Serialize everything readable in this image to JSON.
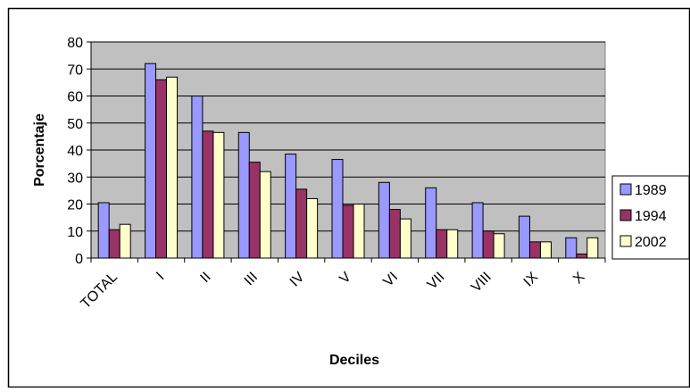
{
  "chart_data": {
    "type": "bar",
    "xlabel": "Deciles",
    "ylabel": "Porcentaje",
    "categories": [
      "TOTAL",
      "I",
      "II",
      "III",
      "IV",
      "V",
      "VI",
      "VII",
      "VIII",
      "IX",
      "X"
    ],
    "yticks": [
      0,
      10,
      20,
      30,
      40,
      50,
      60,
      70,
      80
    ],
    "ylim": [
      0,
      80
    ],
    "grid": true,
    "legend": "right",
    "plot_background": "#c0c0c0",
    "series": [
      {
        "name": "1989",
        "color": "#9999ff",
        "values": [
          20.5,
          72,
          60,
          46.5,
          38.5,
          36.5,
          28,
          26,
          20.5,
          15.5,
          7.5
        ]
      },
      {
        "name": "1994",
        "color": "#993366",
        "values": [
          10.5,
          66,
          47,
          35.5,
          25.5,
          19.5,
          18,
          10.5,
          10,
          6,
          1.5
        ]
      },
      {
        "name": "2002",
        "color": "#ffffcc",
        "values": [
          12.5,
          67,
          46.5,
          32,
          22,
          20,
          14.5,
          10.5,
          9,
          6,
          7.5
        ]
      }
    ]
  }
}
